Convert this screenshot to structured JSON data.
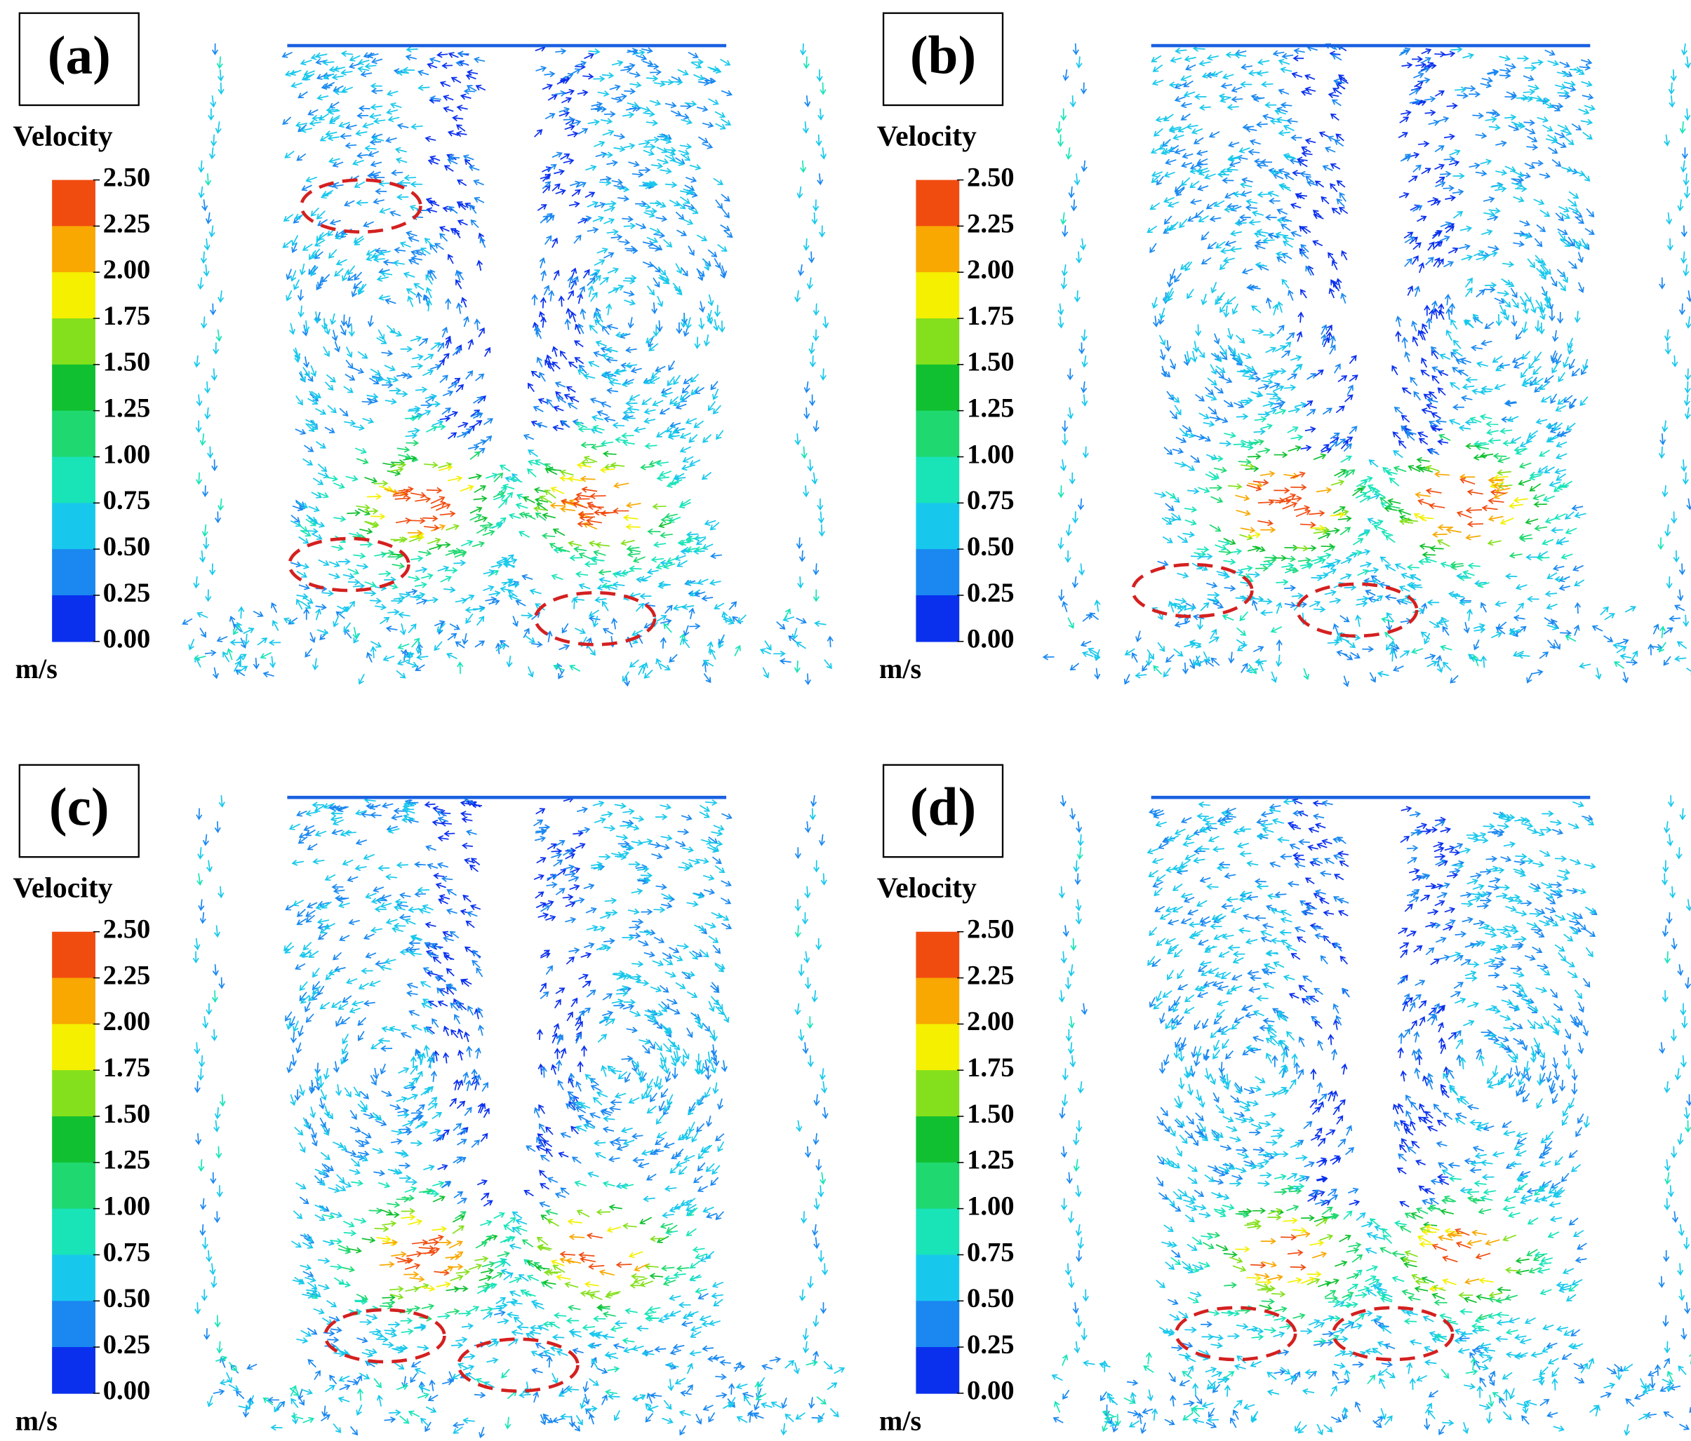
{
  "panels": [
    {
      "label": "(a)",
      "legend": {
        "title": "Velocity",
        "ticks": [
          "2.50",
          "2.25",
          "2.00",
          "1.75",
          "1.50",
          "1.25",
          "1.00",
          "0.75",
          "0.50",
          "0.25",
          "0.00"
        ],
        "unit": "m/s"
      }
    },
    {
      "label": "(b)",
      "legend": {
        "title": "Velocity",
        "ticks": [
          "2.50",
          "2.25",
          "2.00",
          "1.75",
          "1.50",
          "1.25",
          "1.00",
          "0.75",
          "0.50",
          "0.25",
          "0.00"
        ],
        "unit": "m/s"
      }
    },
    {
      "label": "(c)",
      "legend": {
        "title": "Velocity",
        "ticks": [
          "2.50",
          "2.25",
          "2.00",
          "1.75",
          "1.50",
          "1.25",
          "1.00",
          "0.75",
          "0.50",
          "0.25",
          "0.00"
        ],
        "unit": "m/s"
      }
    },
    {
      "label": "(d)",
      "legend": {
        "title": "Velocity",
        "ticks": [
          "2.50",
          "2.25",
          "2.00",
          "1.75",
          "1.50",
          "1.25",
          "1.00",
          "0.75",
          "0.50",
          "0.25",
          "0.00"
        ],
        "unit": "m/s"
      }
    }
  ]
}
